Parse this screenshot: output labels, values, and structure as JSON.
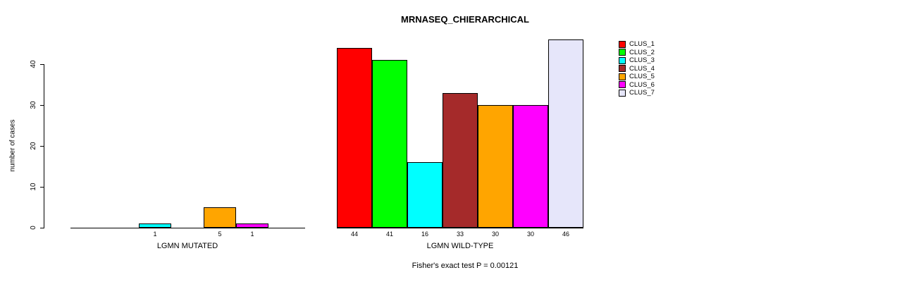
{
  "title": "MRNASEQ_CHIERARCHICAL",
  "ylabel": "number of cases",
  "caption": "Fisher's exact test P = 0.00121",
  "chart_data": {
    "type": "bar",
    "title": "MRNASEQ_CHIERARCHICAL",
    "xlabel": "",
    "ylabel": "number of cases",
    "ylim": [
      0,
      46
    ],
    "yticks": [
      0,
      10,
      20,
      30,
      40
    ],
    "grid": false,
    "legend_position": "top-right",
    "clusters": [
      "CLUS_1",
      "CLUS_2",
      "CLUS_3",
      "CLUS_4",
      "CLUS_5",
      "CLUS_6",
      "CLUS_7"
    ],
    "colors": [
      "#FF0000",
      "#00FF00",
      "#00FFFF",
      "#A52A2A",
      "#FFA500",
      "#FF00FF",
      "#E6E6FA"
    ],
    "groups": [
      {
        "label": "LGMN MUTATED",
        "values": [
          0,
          0,
          1,
          0,
          5,
          1,
          0
        ],
        "bar_labels": [
          "",
          "",
          "1",
          "",
          "5",
          "1",
          ""
        ]
      },
      {
        "label": "LGMN WILD-TYPE",
        "values": [
          44,
          41,
          16,
          33,
          30,
          30,
          46
        ],
        "bar_labels": [
          "44",
          "41",
          "16",
          "33",
          "30",
          "30",
          "46"
        ]
      }
    ],
    "annotation": "Fisher's exact test P = 0.00121"
  }
}
